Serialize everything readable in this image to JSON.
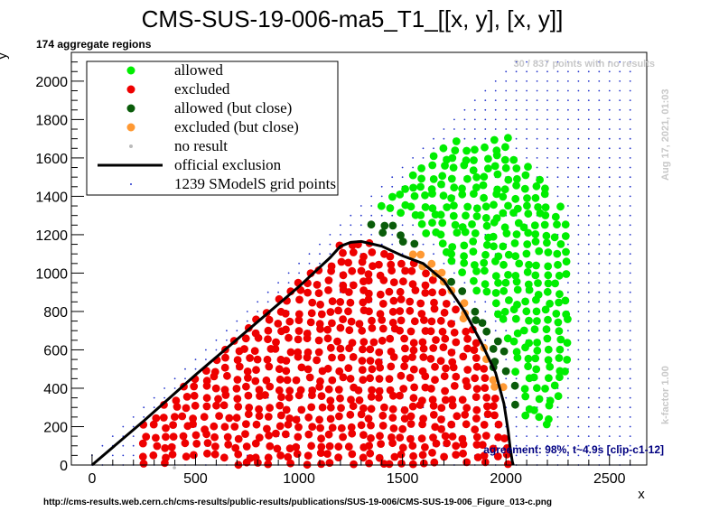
{
  "chart_data": {
    "type": "scatter",
    "title": "CMS-SUS-19-006-ma5_T1_[[x, y], [x, y]]",
    "xlabel": "x",
    "ylabel": "y",
    "xlim": [
      -100,
      2680
    ],
    "ylim": [
      0,
      2150
    ],
    "x_ticks": [
      0,
      500,
      1000,
      1500,
      2000,
      2500
    ],
    "y_ticks": [
      0,
      200,
      400,
      600,
      800,
      1000,
      1200,
      1400,
      1600,
      1800,
      2000
    ],
    "legend_position": "top-left",
    "legend": [
      {
        "key": "allowed",
        "label": "allowed",
        "marker": "dot",
        "color": "#00ee00"
      },
      {
        "key": "excluded",
        "label": "excluded",
        "marker": "dot",
        "color": "#ee0000"
      },
      {
        "key": "allowed_close",
        "label": "allowed (but close)",
        "marker": "dot",
        "color": "#0a5c0a"
      },
      {
        "key": "excluded_close",
        "label": "excluded (but close)",
        "marker": "dot",
        "color": "#ff9933"
      },
      {
        "key": "no_result",
        "label": "no result",
        "marker": "small-dot",
        "color": "#bbbbbb"
      },
      {
        "key": "official",
        "label": "official exclusion",
        "marker": "line",
        "color": "#000000"
      },
      {
        "key": "grid",
        "label": "1239 SModelS grid points",
        "marker": "tiny-dot",
        "color": "#2233cc"
      }
    ],
    "official_exclusion": {
      "x": [
        0,
        250,
        500,
        750,
        1000,
        1150,
        1200,
        1250,
        1300,
        1400,
        1500,
        1600,
        1700,
        1800,
        1880,
        1950,
        1990,
        2010,
        2020,
        2030,
        2035
      ],
      "y": [
        0,
        230,
        470,
        700,
        930,
        1080,
        1140,
        1160,
        1165,
        1140,
        1090,
        1050,
        960,
        800,
        640,
        480,
        320,
        180,
        90,
        20,
        0
      ]
    },
    "regions": {
      "excluded_polygon": [
        [
          0,
          0
        ],
        [
          1200,
          1150
        ],
        [
          1350,
          1160
        ],
        [
          1560,
          1060
        ],
        [
          1700,
          920
        ],
        [
          1850,
          700
        ],
        [
          1950,
          450
        ],
        [
          2000,
          250
        ],
        [
          2030,
          0
        ]
      ],
      "allowed_close_polygon": [
        [
          1280,
          1260
        ],
        [
          1500,
          1250
        ],
        [
          1620,
          1100
        ],
        [
          1800,
          900
        ],
        [
          1980,
          650
        ],
        [
          2080,
          350
        ],
        [
          2100,
          250
        ],
        [
          2000,
          300
        ],
        [
          1900,
          600
        ],
        [
          1700,
          950
        ],
        [
          1500,
          1140
        ]
      ],
      "excluded_close_polygon": [
        [
          1330,
          1220
        ],
        [
          1500,
          1180
        ],
        [
          1680,
          1020
        ],
        [
          1830,
          800
        ],
        [
          1950,
          560
        ],
        [
          2010,
          330
        ],
        [
          1960,
          320
        ],
        [
          1880,
          600
        ],
        [
          1700,
          920
        ],
        [
          1520,
          1100
        ]
      ],
      "allowed_polygon": [
        [
          1300,
          1380
        ],
        [
          1400,
          1500
        ],
        [
          1500,
          1600
        ],
        [
          1650,
          1650
        ],
        [
          1800,
          1700
        ],
        [
          2000,
          1720
        ],
        [
          2100,
          1600
        ],
        [
          2300,
          1300
        ],
        [
          2300,
          500
        ],
        [
          2200,
          200
        ],
        [
          2080,
          250
        ],
        [
          2050,
          450
        ],
        [
          2000,
          700
        ],
        [
          1850,
          900
        ],
        [
          1700,
          1100
        ],
        [
          1550,
          1250
        ]
      ]
    },
    "grid": {
      "x_start": 0,
      "x_end": 2600,
      "x_step": 50,
      "y_start": 0,
      "y_end": 2100,
      "y_step": 50
    },
    "notes": {
      "top_left": "174 aggregate regions",
      "top_right": "30 / 837 points with no results",
      "timestamp": "Aug 17, 2021, 01:03",
      "kfactor": "k-factor 1.00",
      "agreement": "agreement: 98%, t~4.9s [clip-c1-12]",
      "source_url": "http://cms-results.web.cern.ch/cms-results/public-results/publications/SUS-19-006/CMS-SUS-19-006_Figure_013-c.png"
    }
  }
}
